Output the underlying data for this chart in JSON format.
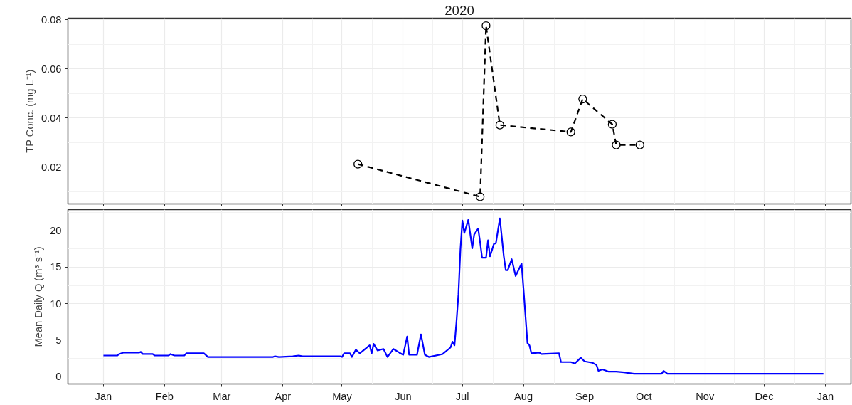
{
  "chart_data": [
    {
      "type": "line",
      "title": "2020",
      "ylabel": "TP Conc. (mg L⁻¹)",
      "marker": "circle",
      "line_style": "dashed",
      "grid": true,
      "tick_labels": "y",
      "xlim": [
        "2019-12-14",
        "2021-01-14"
      ],
      "ylim": [
        0.005,
        0.0806
      ],
      "yticks": [
        0.02,
        0.04,
        0.06,
        0.08
      ],
      "xticks": [
        {
          "value": "2020-01-01",
          "label": null
        },
        {
          "value": "2020-02-01",
          "label": null
        },
        {
          "value": "2020-03-01",
          "label": null
        },
        {
          "value": "2020-04-01",
          "label": null
        },
        {
          "value": "2020-05-01",
          "label": null
        },
        {
          "value": "2020-06-01",
          "label": null
        },
        {
          "value": "2020-07-01",
          "label": null
        },
        {
          "value": "2020-08-01",
          "label": null
        },
        {
          "value": "2020-09-01",
          "label": null
        },
        {
          "value": "2020-10-01",
          "label": null
        },
        {
          "value": "2020-11-01",
          "label": null
        },
        {
          "value": "2020-12-01",
          "label": null
        },
        {
          "value": "2021-01-01",
          "label": null
        }
      ],
      "series": [
        {
          "color": "#000000",
          "x": [
            "2020-05-09",
            "2020-07-10",
            "2020-07-13",
            "2020-07-20",
            "2020-08-25",
            "2020-08-31",
            "2020-09-15",
            "2020-09-17",
            "2020-09-29"
          ],
          "values": [
            0.0212,
            0.0079,
            0.0775,
            0.0371,
            0.0343,
            0.0477,
            0.0374,
            0.029,
            0.029
          ]
        }
      ]
    },
    {
      "type": "line",
      "ylabel": "Mean Daily Q (m³ s⁻¹)",
      "marker": "none",
      "line_style": "solid",
      "grid": true,
      "xlim": [
        "2019-12-14",
        "2021-01-14"
      ],
      "ylim": [
        -1.0,
        22.9
      ],
      "yticks": [
        0,
        5,
        10,
        15,
        20
      ],
      "xticks": [
        {
          "value": "2020-01-01",
          "label": "Jan"
        },
        {
          "value": "2020-02-01",
          "label": "Feb"
        },
        {
          "value": "2020-03-01",
          "label": "Mar"
        },
        {
          "value": "2020-04-01",
          "label": "Apr"
        },
        {
          "value": "2020-05-01",
          "label": "May"
        },
        {
          "value": "2020-06-01",
          "label": "Jun"
        },
        {
          "value": "2020-07-01",
          "label": "Jul"
        },
        {
          "value": "2020-08-01",
          "label": "Aug"
        },
        {
          "value": "2020-09-01",
          "label": "Sep"
        },
        {
          "value": "2020-10-01",
          "label": "Oct"
        },
        {
          "value": "2020-11-01",
          "label": "Nov"
        },
        {
          "value": "2020-12-01",
          "label": "Dec"
        },
        {
          "value": "2021-01-01",
          "label": "Jan"
        }
      ],
      "series": [
        {
          "color": "#0000ff",
          "x": [
            "2020-01-01",
            "2020-01-08",
            "2020-01-09",
            "2020-01-11",
            "2020-01-19",
            "2020-01-20",
            "2020-01-21",
            "2020-01-26",
            "2020-01-27",
            "2020-02-03",
            "2020-02-04",
            "2020-02-06",
            "2020-02-11",
            "2020-02-12",
            "2020-02-21",
            "2020-02-23",
            "2020-03-27",
            "2020-03-28",
            "2020-03-30",
            "2020-04-06",
            "2020-04-09",
            "2020-04-11",
            "2020-04-30",
            "2020-05-01",
            "2020-05-02",
            "2020-05-05",
            "2020-05-06",
            "2020-05-08",
            "2020-05-10",
            "2020-05-15",
            "2020-05-16",
            "2020-05-17",
            "2020-05-19",
            "2020-05-22",
            "2020-05-24",
            "2020-05-27",
            "2020-05-30",
            "2020-06-01",
            "2020-06-03",
            "2020-06-04",
            "2020-06-08",
            "2020-06-10",
            "2020-06-12",
            "2020-06-14",
            "2020-06-21",
            "2020-06-25",
            "2020-06-26",
            "2020-06-27",
            "2020-06-28",
            "2020-06-29",
            "2020-06-30",
            "2020-07-01",
            "2020-07-02",
            "2020-07-04",
            "2020-07-06",
            "2020-07-07",
            "2020-07-09",
            "2020-07-10",
            "2020-07-11",
            "2020-07-13",
            "2020-07-14",
            "2020-07-15",
            "2020-07-17",
            "2020-07-18",
            "2020-07-20",
            "2020-07-22",
            "2020-07-23",
            "2020-07-24",
            "2020-07-26",
            "2020-07-28",
            "2020-07-31",
            "2020-08-01",
            "2020-08-03",
            "2020-08-04",
            "2020-08-05",
            "2020-08-09",
            "2020-08-10",
            "2020-08-19",
            "2020-08-20",
            "2020-08-25",
            "2020-08-27",
            "2020-08-30",
            "2020-09-01",
            "2020-09-05",
            "2020-09-07",
            "2020-09-08",
            "2020-09-10",
            "2020-09-13",
            "2020-09-17",
            "2020-09-21",
            "2020-09-26",
            "2020-10-10",
            "2020-10-11",
            "2020-10-13",
            "2020-12-31"
          ],
          "values": [
            2.9,
            2.9,
            3.1,
            3.3,
            3.3,
            3.4,
            3.1,
            3.1,
            2.9,
            2.9,
            3.1,
            2.9,
            2.9,
            3.2,
            3.2,
            2.7,
            2.7,
            2.8,
            2.7,
            2.8,
            2.9,
            2.8,
            2.8,
            2.7,
            3.2,
            3.2,
            2.7,
            3.7,
            3.2,
            4.3,
            3.2,
            4.5,
            3.6,
            3.8,
            2.7,
            3.8,
            3.3,
            3.0,
            5.5,
            3.0,
            3.0,
            5.8,
            3.0,
            2.7,
            3.1,
            4.0,
            4.8,
            4.3,
            7.5,
            11.3,
            17.4,
            21.4,
            19.7,
            21.5,
            17.6,
            19.5,
            20.3,
            18.4,
            16.3,
            16.3,
            18.7,
            16.5,
            18.2,
            18.3,
            21.7,
            16.5,
            14.6,
            14.6,
            16.1,
            13.8,
            15.5,
            12.0,
            4.6,
            4.3,
            3.2,
            3.3,
            3.1,
            3.2,
            2.0,
            2.0,
            1.8,
            2.6,
            2.1,
            1.9,
            1.6,
            0.8,
            1.0,
            0.7,
            0.7,
            0.6,
            0.4,
            0.4,
            0.8,
            0.4,
            0.4
          ]
        }
      ]
    }
  ]
}
